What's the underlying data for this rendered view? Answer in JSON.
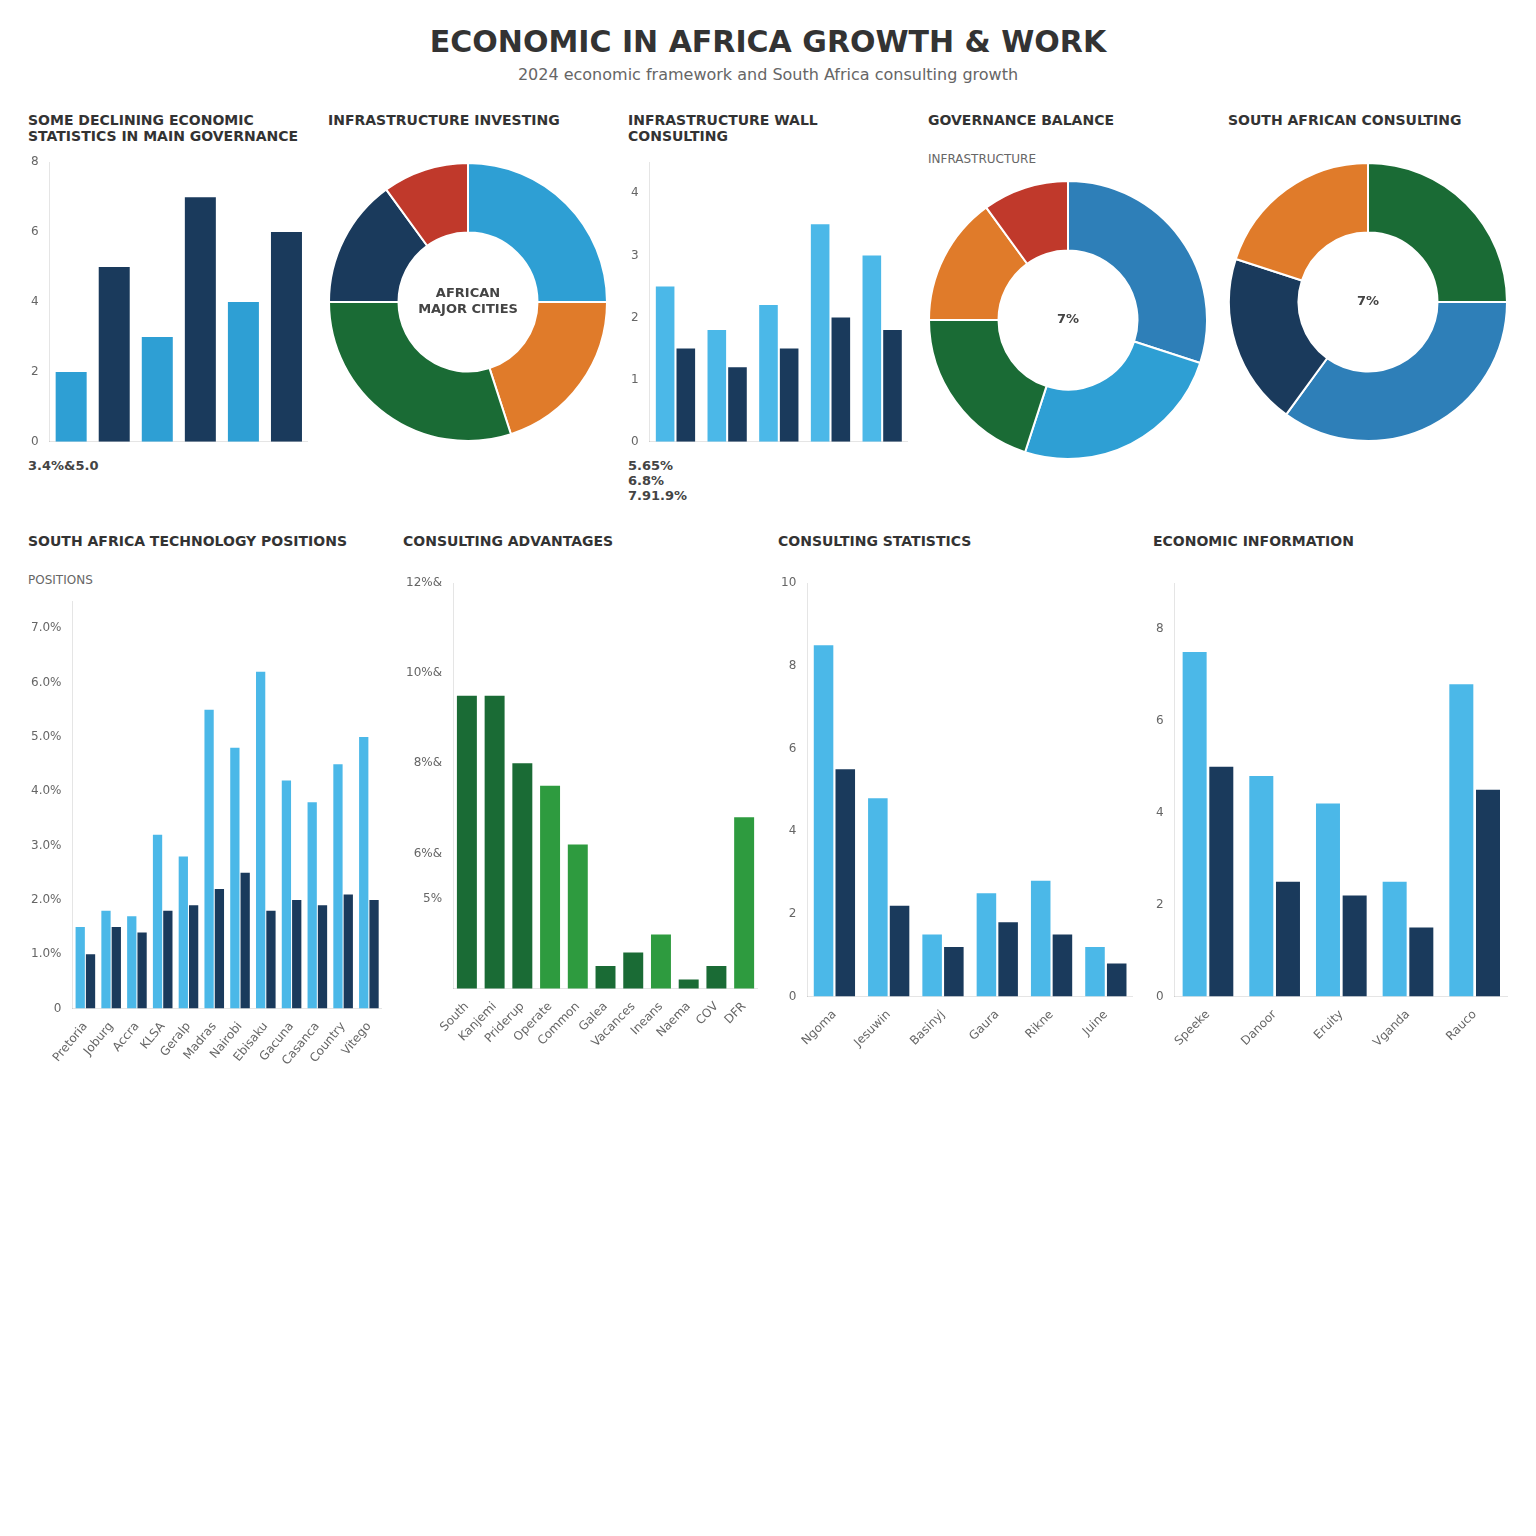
{
  "title": "ECONOMIC IN AFRICA GROWTH & WORK",
  "subtitle": "2024 economic framework and South Africa consulting growth",
  "chart_data": [
    {
      "type": "bar",
      "title": "SOME DECLINING ECONOMIC STATISTICS IN MAIN GOVERNANCE",
      "categories": [
        null,
        null,
        null,
        null,
        null,
        null
      ],
      "values": [
        2,
        5,
        3,
        7,
        4,
        6
      ],
      "colors": [
        "#2e9fd4",
        "#1a3a5c",
        "#2e9fd4",
        "#1a3a5c",
        "#2e9fd4",
        "#1a3a5c"
      ],
      "ylim": [
        0,
        8
      ],
      "yticks": [
        0,
        2,
        4,
        6,
        8
      ],
      "grid": false,
      "tick_labels": "y",
      "annotations": [
        "3.4%&5.0"
      ]
    },
    {
      "type": "doughnut",
      "title": "INFRASTRUCTURE INVESTING",
      "values": [
        25,
        20,
        30,
        15,
        10
      ],
      "colors": [
        "#2e9fd4",
        "#e07b2a",
        "#1a6b35",
        "#1a3a5c",
        "#c0392b"
      ],
      "annotations": [
        "AFRICAN\nMAJOR CITIES"
      ]
    },
    {
      "type": "bar",
      "title": "INFRASTRUCTURE WALL CONSULTING",
      "categories": [
        null,
        null,
        null,
        null,
        null
      ],
      "series": [
        {
          "color": "#4bb8e8",
          "values": [
            2.5,
            1.8,
            2.2,
            3.5,
            3.0
          ]
        },
        {
          "color": "#1a3a5c",
          "values": [
            1.5,
            1.2,
            1.5,
            2.0,
            1.8
          ]
        }
      ],
      "ylim": [
        0,
        4.5
      ],
      "yticks": [
        0,
        1,
        2,
        3,
        4
      ],
      "grid": false,
      "tick_labels": "y",
      "annotations": [
        "5.65%\n6.8%\n7.91.9%"
      ]
    },
    {
      "type": "doughnut",
      "title": "GOVERNANCE BALANCE",
      "subtitle": "INFRASTRUCTURE",
      "values": [
        30,
        25,
        20,
        15,
        10
      ],
      "colors": [
        "#2e7fb8",
        "#2e9fd4",
        "#1a6b35",
        "#e07b2a",
        "#c0392b"
      ],
      "annotations": [
        "7%"
      ]
    },
    {
      "type": "doughnut",
      "title": "SOUTH AFRICAN CONSULTING",
      "values": [
        25,
        35,
        20,
        20
      ],
      "colors": [
        "#1a6b35",
        "#2e7fb8",
        "#1a3a5c",
        "#e07b2a"
      ],
      "annotations": [
        "7%"
      ]
    },
    {
      "type": "bar",
      "title": "SOUTH AFRICA TECHNOLOGY POSITIONS",
      "subtitle": "POSITIONS",
      "categories": [
        "Pretoria",
        "Joburg",
        "Accra",
        "KLSA",
        "Geralp",
        "Madras",
        "Nairobi",
        "Ebisaku",
        "Gacuna",
        "Casanca",
        "Country",
        "Vitego"
      ],
      "series": [
        {
          "color": "#4bb8e8",
          "values": [
            1.5,
            1.8,
            1.7,
            3.2,
            2.8,
            5.5,
            4.8,
            6.2,
            4.2,
            3.8,
            4.5,
            5.0
          ]
        },
        {
          "color": "#1a3a5c",
          "values": [
            1.0,
            1.5,
            1.4,
            1.8,
            1.9,
            2.2,
            2.5,
            1.8,
            2.0,
            1.9,
            2.1,
            2.0
          ]
        }
      ],
      "ylim": [
        0,
        7.5
      ],
      "yticks": [
        0,
        {
          "value": 1,
          "label": "1.0%"
        },
        {
          "value": 2,
          "label": "2.0%"
        },
        {
          "value": 3,
          "label": "3.0%"
        },
        {
          "value": 4,
          "label": "4.0%"
        },
        {
          "value": 5,
          "label": "5.0%"
        },
        {
          "value": 6,
          "label": "6.0%"
        },
        {
          "value": 7,
          "label": "7.0%"
        }
      ],
      "grid": false
    },
    {
      "type": "bar",
      "title": "CONSULTING ADVANTAGES",
      "categories": [
        "South",
        "Kanjemi",
        "Priderup",
        "Operate",
        "Common",
        "Galea",
        "Vacances",
        "Ineans",
        "Naema",
        "COV",
        "DFR"
      ],
      "values": [
        9.5,
        9.5,
        8.0,
        7.5,
        6.2,
        3.5,
        3.8,
        4.2,
        3.2,
        3.5,
        6.8
      ],
      "colors": [
        "#1a6b35",
        "#1a6b35",
        "#1a6b35",
        "#2e9b3f",
        "#2e9b3f",
        "#1a6b35",
        "#1a6b35",
        "#2e9b3f",
        "#1a6b35",
        "#1a6b35",
        "#2e9b3f"
      ],
      "ylim": [
        3,
        12
      ],
      "yticks": [
        {
          "value": 3,
          "label": ""
        },
        {
          "value": 5,
          "label": "5%"
        },
        {
          "value": 6,
          "label": "6%&"
        },
        {
          "value": 8,
          "label": "8%&"
        },
        {
          "value": 10,
          "label": "10%&"
        },
        {
          "value": 12,
          "label": "12%&"
        }
      ],
      "grid": false
    },
    {
      "type": "bar",
      "title": "CONSULTING STATISTICS",
      "categories": [
        "Ngoma",
        "Jesuwin",
        "Basinyj",
        "Gaura",
        "Rikne",
        "Juine"
      ],
      "series": [
        {
          "color": "#4bb8e8",
          "values": [
            8.5,
            4.8,
            1.5,
            2.5,
            2.8,
            1.2
          ]
        },
        {
          "color": "#1a3a5c",
          "values": [
            5.5,
            2.2,
            1.2,
            1.8,
            1.5,
            0.8
          ]
        }
      ],
      "ylim": [
        0,
        10
      ],
      "yticks": [
        0,
        2,
        4,
        6,
        8,
        10
      ],
      "grid": false
    },
    {
      "type": "bar",
      "title": "ECONOMIC INFORMATION",
      "categories": [
        "Speeke",
        "Danoor",
        "Eruity",
        "Vganda",
        "Rauco"
      ],
      "series": [
        {
          "color": "#4bb8e8",
          "values": [
            7.5,
            4.8,
            4.2,
            2.5,
            6.8
          ]
        },
        {
          "color": "#1a3a5c",
          "values": [
            5.0,
            2.5,
            2.2,
            1.5,
            4.5
          ]
        }
      ],
      "ylim": [
        0,
        9
      ],
      "yticks": [
        0,
        2,
        4,
        6,
        8
      ],
      "grid": false
    }
  ]
}
